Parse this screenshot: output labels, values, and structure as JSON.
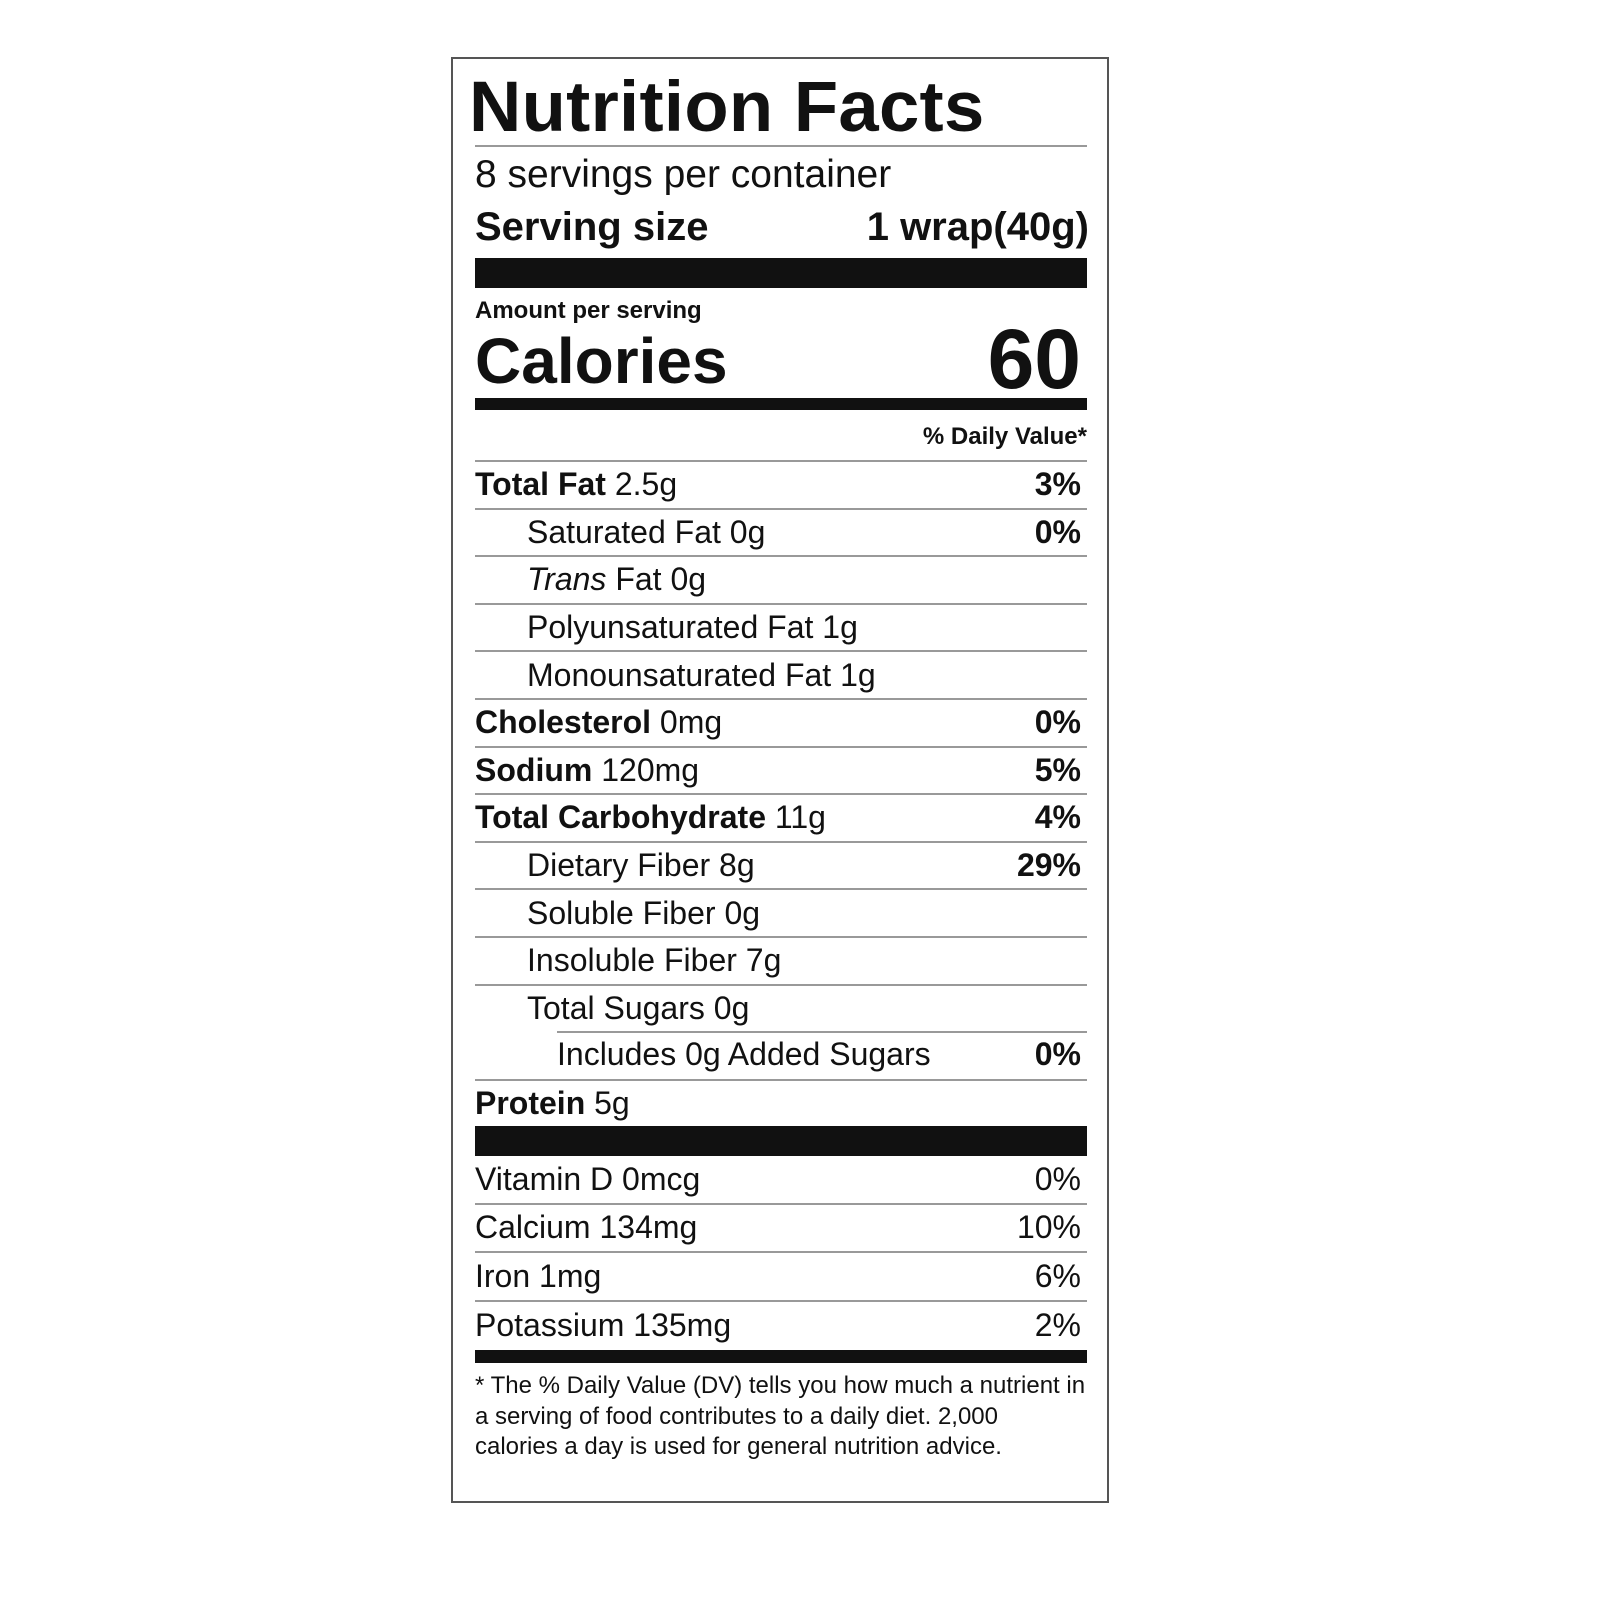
{
  "title": "Nutrition Facts",
  "servings_per_container": "8 servings per container",
  "serving_size": {
    "label": "Serving size",
    "value": "1 wrap(40g)"
  },
  "amount_per_serving": "Amount per serving",
  "calories": {
    "label": "Calories",
    "value": "60"
  },
  "daily_value_header": "% Daily Value*",
  "nutrients": [
    {
      "name": "Total Fat",
      "amount": "2.5g",
      "dv": "3%",
      "bold": true,
      "indent": 0
    },
    {
      "name": "Saturated Fat",
      "amount": "0g",
      "dv": "0%",
      "bold": false,
      "indent": 1
    },
    {
      "name_italic": "Trans",
      "name": "Fat",
      "amount": "0g",
      "dv": "",
      "bold": false,
      "indent": 1
    },
    {
      "name": "Polyunsaturated Fat",
      "amount": "1g",
      "dv": "",
      "bold": false,
      "indent": 1
    },
    {
      "name": "Monounsaturated Fat",
      "amount": "1g",
      "dv": "",
      "bold": false,
      "indent": 1
    },
    {
      "name": "Cholesterol",
      "amount": "0mg",
      "dv": "0%",
      "bold": true,
      "indent": 0
    },
    {
      "name": "Sodium",
      "amount": "120mg",
      "dv": "5%",
      "bold": true,
      "indent": 0
    },
    {
      "name": "Total Carbohydrate",
      "amount": "11g",
      "dv": "4%",
      "bold": true,
      "indent": 0
    },
    {
      "name": "Dietary Fiber",
      "amount": "8g",
      "dv": "29%",
      "bold": false,
      "indent": 1
    },
    {
      "name": "Soluble Fiber",
      "amount": "0g",
      "dv": "",
      "bold": false,
      "indent": 1
    },
    {
      "name": "Insoluble Fiber",
      "amount": "7g",
      "dv": "",
      "bold": false,
      "indent": 1
    },
    {
      "name": "Total Sugars",
      "amount": "0g",
      "dv": "",
      "bold": false,
      "indent": 1
    },
    {
      "name": "Includes 0g Added Sugars",
      "amount": "",
      "dv": "0%",
      "bold": false,
      "indent": 2
    },
    {
      "name": "Protein",
      "amount": "5g",
      "dv": "",
      "bold": true,
      "indent": 0
    }
  ],
  "vitamins": [
    {
      "name": "Vitamin D",
      "amount": "0mcg",
      "dv": "0%"
    },
    {
      "name": "Calcium",
      "amount": "134mg",
      "dv": "10%"
    },
    {
      "name": "Iron",
      "amount": "1mg",
      "dv": "6%"
    },
    {
      "name": "Potassium",
      "amount": "135mg",
      "dv": "2%"
    }
  ],
  "footnote": "* The % Daily Value (DV) tells you how much a nutrient in a serving of food contributes to a daily diet. 2,000 calories a day is used for general nutrition advice."
}
